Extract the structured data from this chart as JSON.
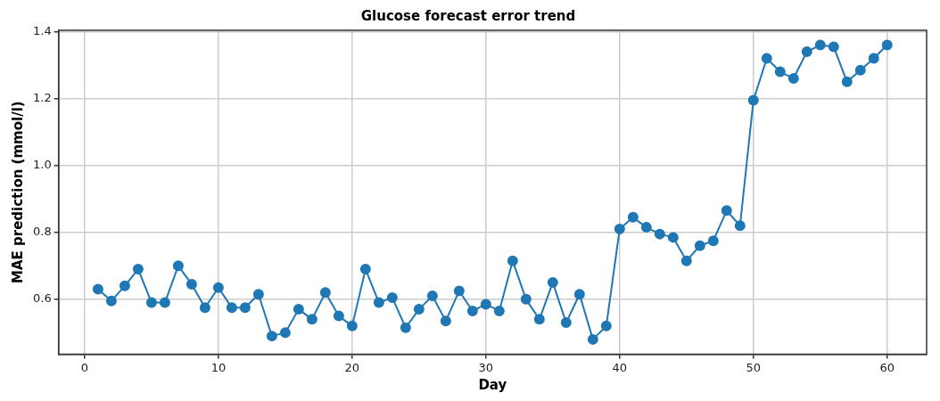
{
  "chart_data": {
    "type": "line",
    "title": "Glucose forecast error trend",
    "xlabel": "Day",
    "ylabel": "MAE prediction (mmol/l)",
    "x": [
      1,
      2,
      3,
      4,
      5,
      6,
      7,
      8,
      9,
      10,
      11,
      12,
      13,
      14,
      15,
      16,
      17,
      18,
      19,
      20,
      21,
      22,
      23,
      24,
      25,
      26,
      27,
      28,
      29,
      30,
      31,
      32,
      33,
      34,
      35,
      36,
      37,
      38,
      39,
      40,
      41,
      42,
      43,
      44,
      45,
      46,
      47,
      48,
      49,
      50,
      51,
      52,
      53,
      54,
      55,
      56,
      57,
      58,
      59,
      60
    ],
    "series": [
      {
        "color": "#1f77b4",
        "values": [
          0.63,
          0.595,
          0.64,
          0.69,
          0.59,
          0.59,
          0.7,
          0.645,
          0.575,
          0.635,
          0.575,
          0.575,
          0.615,
          0.49,
          0.5,
          0.57,
          0.54,
          0.62,
          0.55,
          0.52,
          0.69,
          0.59,
          0.605,
          0.515,
          0.57,
          0.61,
          0.535,
          0.625,
          0.565,
          0.585,
          0.565,
          0.715,
          0.6,
          0.54,
          0.65,
          0.53,
          0.615,
          0.48,
          0.52,
          0.81,
          0.845,
          0.815,
          0.795,
          0.785,
          0.715,
          0.76,
          0.775,
          0.865,
          0.82,
          1.195,
          1.32,
          1.28,
          1.26,
          1.34,
          1.36,
          1.355,
          1.25,
          1.285,
          1.32,
          1.36
        ]
      }
    ],
    "xlim": [
      -1.95,
      62.95
    ],
    "xticks": [
      0,
      10,
      20,
      30,
      40,
      50,
      60
    ],
    "ylim": [
      0.436,
      1.404
    ],
    "yticks": [
      0.6,
      0.8,
      {
        "value": 1,
        "label": "1.0"
      },
      1.2,
      1.4
    ],
    "grid": true,
    "legend": false,
    "marker": "circle",
    "line_style": "solid"
  }
}
